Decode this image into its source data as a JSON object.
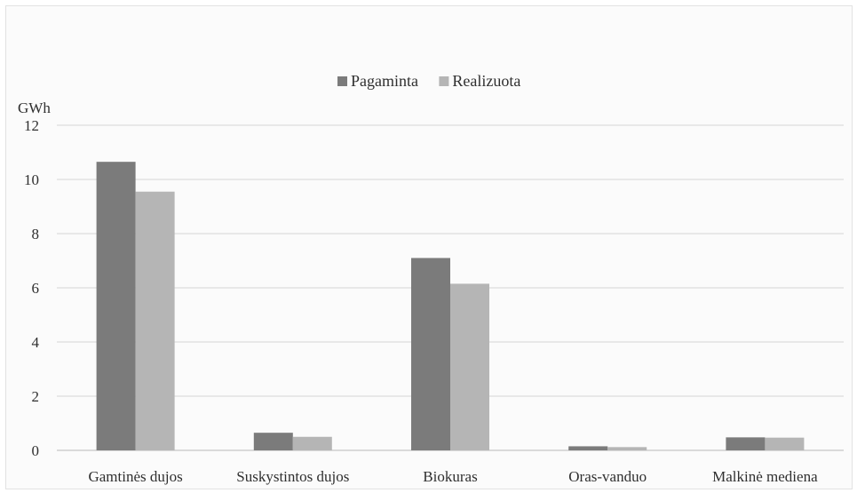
{
  "chart_data": {
    "type": "bar",
    "unit_label": "GWh",
    "categories": [
      "Gamtinės dujos",
      "Suskystintos dujos",
      "Biokuras",
      "Oras-vanduo",
      "Malkinė mediena"
    ],
    "series": [
      {
        "name": "Pagaminta",
        "color": "#7b7b7b",
        "values": [
          10.65,
          0.65,
          7.1,
          0.15,
          0.48
        ]
      },
      {
        "name": "Realizuota",
        "color": "#b5b5b5",
        "values": [
          9.55,
          0.5,
          6.15,
          0.12,
          0.47
        ]
      }
    ],
    "ylim": [
      0,
      12
    ],
    "yticks": [
      0,
      2,
      4,
      6,
      8,
      10,
      12
    ],
    "grid": true,
    "legend_position": "top"
  }
}
